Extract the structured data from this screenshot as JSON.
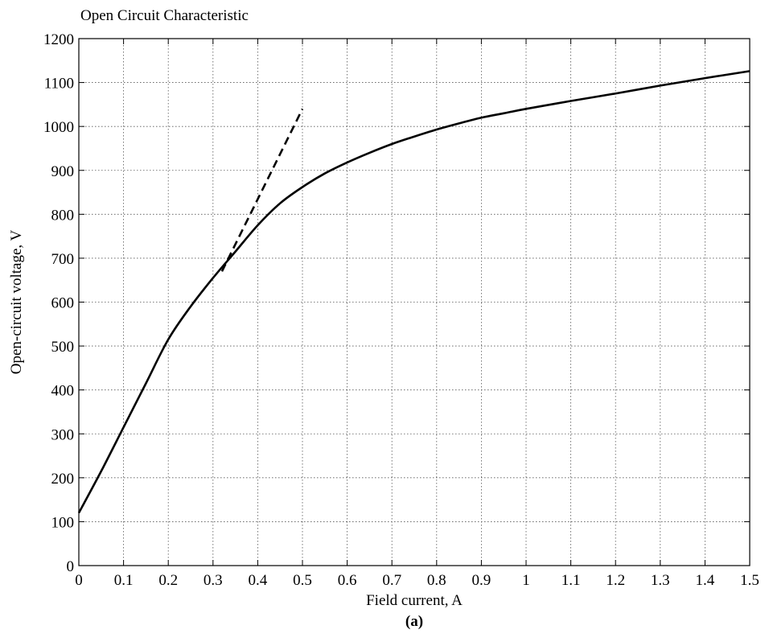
{
  "chart_data": {
    "type": "line",
    "title": "Open Circuit Characteristic",
    "xlabel": "Field current, A",
    "ylabel": "Open-circuit voltage, V",
    "sublabel": "(a)",
    "xlim": [
      0,
      1.5
    ],
    "ylim": [
      0,
      1200
    ],
    "x_ticks": [
      0,
      0.1,
      0.2,
      0.3,
      0.4,
      0.5,
      0.6,
      0.7,
      0.8,
      0.9,
      1,
      1.1,
      1.2,
      1.3,
      1.4,
      1.5
    ],
    "x_tick_labels": [
      "0",
      "0.1",
      "0.2",
      "0.3",
      "0.4",
      "0.5",
      "0.6",
      "0.7",
      "0.8",
      "0.9",
      "1",
      "1.1",
      "1.2",
      "1.3",
      "1.4",
      "1.5"
    ],
    "y_ticks": [
      0,
      100,
      200,
      300,
      400,
      500,
      600,
      700,
      800,
      900,
      1000,
      1100,
      1200
    ],
    "y_tick_labels": [
      "0",
      "100",
      "200",
      "300",
      "400",
      "500",
      "600",
      "700",
      "800",
      "900",
      "1000",
      "1100",
      "1200"
    ],
    "grid": true,
    "series": [
      {
        "style": "solid",
        "color": "#000000",
        "x": [
          0,
          0.05,
          0.1,
          0.15,
          0.2,
          0.25,
          0.3,
          0.35,
          0.4,
          0.45,
          0.5,
          0.55,
          0.6,
          0.65,
          0.7,
          0.75,
          0.8,
          0.85,
          0.9,
          0.95,
          1.0,
          1.1,
          1.2,
          1.3,
          1.4,
          1.5
        ],
        "y": [
          120,
          215,
          315,
          415,
          515,
          590,
          655,
          715,
          775,
          825,
          862,
          893,
          918,
          940,
          960,
          977,
          993,
          1007,
          1020,
          1030,
          1040,
          1058,
          1075,
          1093,
          1110,
          1126
        ]
      },
      {
        "style": "dashed",
        "color": "#000000",
        "x": [
          0.32,
          0.5
        ],
        "y": [
          670,
          1040
        ]
      }
    ]
  }
}
